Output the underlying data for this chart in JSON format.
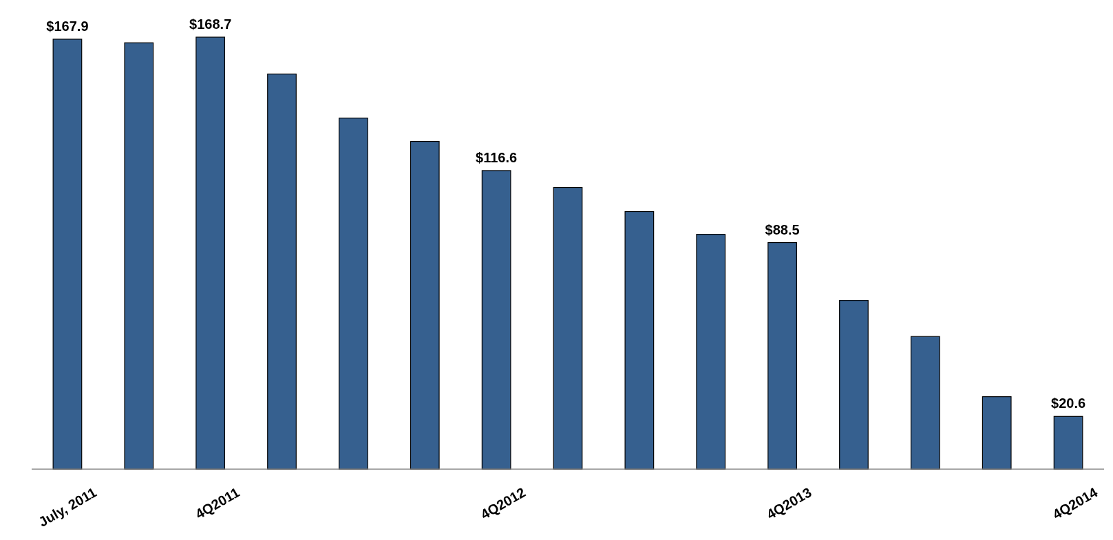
{
  "chart_data": {
    "type": "bar",
    "categories": [
      "July, 2011",
      null,
      "4Q2011",
      null,
      null,
      null,
      "4Q2012",
      null,
      null,
      null,
      "4Q2013",
      null,
      null,
      null,
      "4Q2014"
    ],
    "values": [
      167.9,
      166.5,
      168.7,
      154.3,
      137.1,
      128.0,
      116.6,
      110.0,
      100.6,
      91.7,
      88.5,
      65.9,
      51.8,
      28.3,
      20.6
    ],
    "value_labels": [
      "$167.9",
      null,
      "$168.7",
      null,
      null,
      null,
      "$116.6",
      null,
      null,
      null,
      "$88.5",
      null,
      null,
      null,
      "$20.6"
    ],
    "color": "#36608f"
  }
}
